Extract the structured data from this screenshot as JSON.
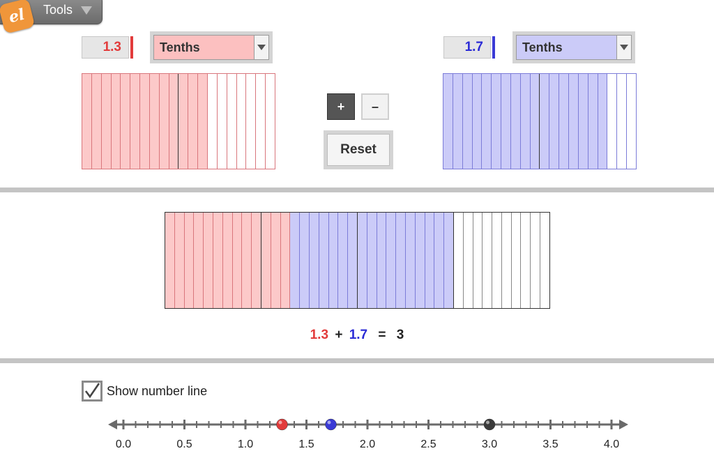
{
  "tools": {
    "label": "Tools",
    "logo_text": "el"
  },
  "model_a": {
    "value": "1.3",
    "unit": "Tenths",
    "color": "#e23b3b",
    "fill": "#fcc9c9",
    "line": "#d9767c",
    "shaded_tenths": 13
  },
  "model_b": {
    "value": "1.7",
    "unit": "Tenths",
    "color": "#2b2bd6",
    "fill": "#cbcbf8",
    "line": "#7c7cd8",
    "shaded_tenths": 17
  },
  "operations": {
    "plus": "+",
    "minus": "–",
    "reset": "Reset"
  },
  "sum_model": {
    "total_tenths": 40,
    "a_tenths": 13,
    "b_tenths": 17
  },
  "equation": {
    "a": "1.3",
    "op": "+",
    "b": "1.7",
    "eq": "=",
    "result": "3"
  },
  "number_line": {
    "checkbox_label": "Show number line",
    "checked": true,
    "min": 0,
    "max": 4,
    "step": 0.1,
    "labels": [
      "0.0",
      "0.5",
      "1.0",
      "1.5",
      "2.0",
      "2.5",
      "3.0",
      "3.5",
      "4.0"
    ],
    "points": [
      {
        "name": "a",
        "value": 1.3,
        "color": "#e23b3b"
      },
      {
        "name": "b",
        "value": 1.7,
        "color": "#3b3bd6"
      },
      {
        "name": "sum",
        "value": 3.0,
        "color": "#3a3a3a"
      }
    ]
  }
}
